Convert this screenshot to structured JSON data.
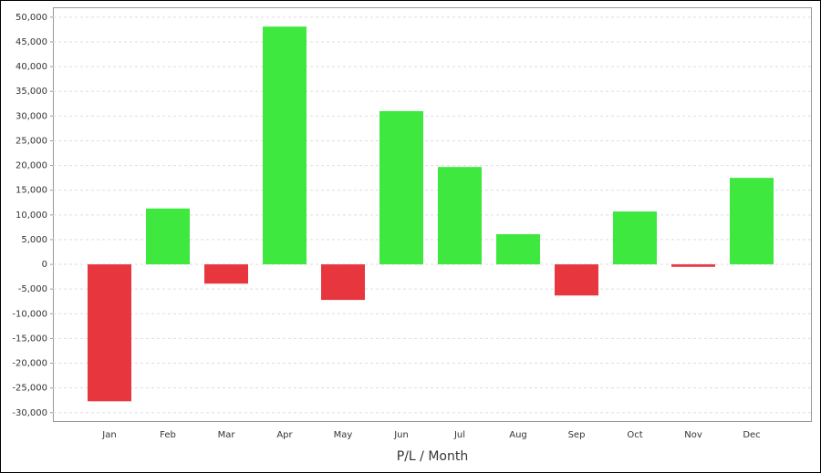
{
  "chart_data": {
    "type": "bar",
    "xlabel": "P/L / Month",
    "categories": [
      "Jan",
      "Feb",
      "Mar",
      "Apr",
      "May",
      "Jun",
      "Jul",
      "Aug",
      "Sep",
      "Oct",
      "Nov",
      "Dec"
    ],
    "values": [
      -27700,
      11300,
      -3900,
      48100,
      -7200,
      31000,
      19700,
      6100,
      -6300,
      10700,
      -500,
      17500
    ],
    "positive_color": "#3fe83f",
    "negative_color": "#e8363f",
    "ylim": [
      -31700,
      52000
    ],
    "yticks": [
      {
        "value": -30000,
        "label": "-30,000"
      },
      {
        "value": -25000,
        "label": "-25,000"
      },
      {
        "value": -20000,
        "label": "-20,000"
      },
      {
        "value": -15000,
        "label": "-15,000"
      },
      {
        "value": -10000,
        "label": "-10,000"
      },
      {
        "value": -5000,
        "label": "-5,000"
      },
      0,
      {
        "value": 5000,
        "label": "5,000"
      },
      {
        "value": 10000,
        "label": "10,000"
      },
      {
        "value": 15000,
        "label": "15,000"
      },
      {
        "value": 20000,
        "label": "20,000"
      },
      {
        "value": 25000,
        "label": "25,000"
      },
      {
        "value": 30000,
        "label": "30,000"
      },
      {
        "value": 35000,
        "label": "35,000"
      },
      {
        "value": 40000,
        "label": "40,000"
      },
      {
        "value": 45000,
        "label": "45,000"
      },
      {
        "value": 50000,
        "label": "50,000"
      }
    ],
    "grid": true
  }
}
